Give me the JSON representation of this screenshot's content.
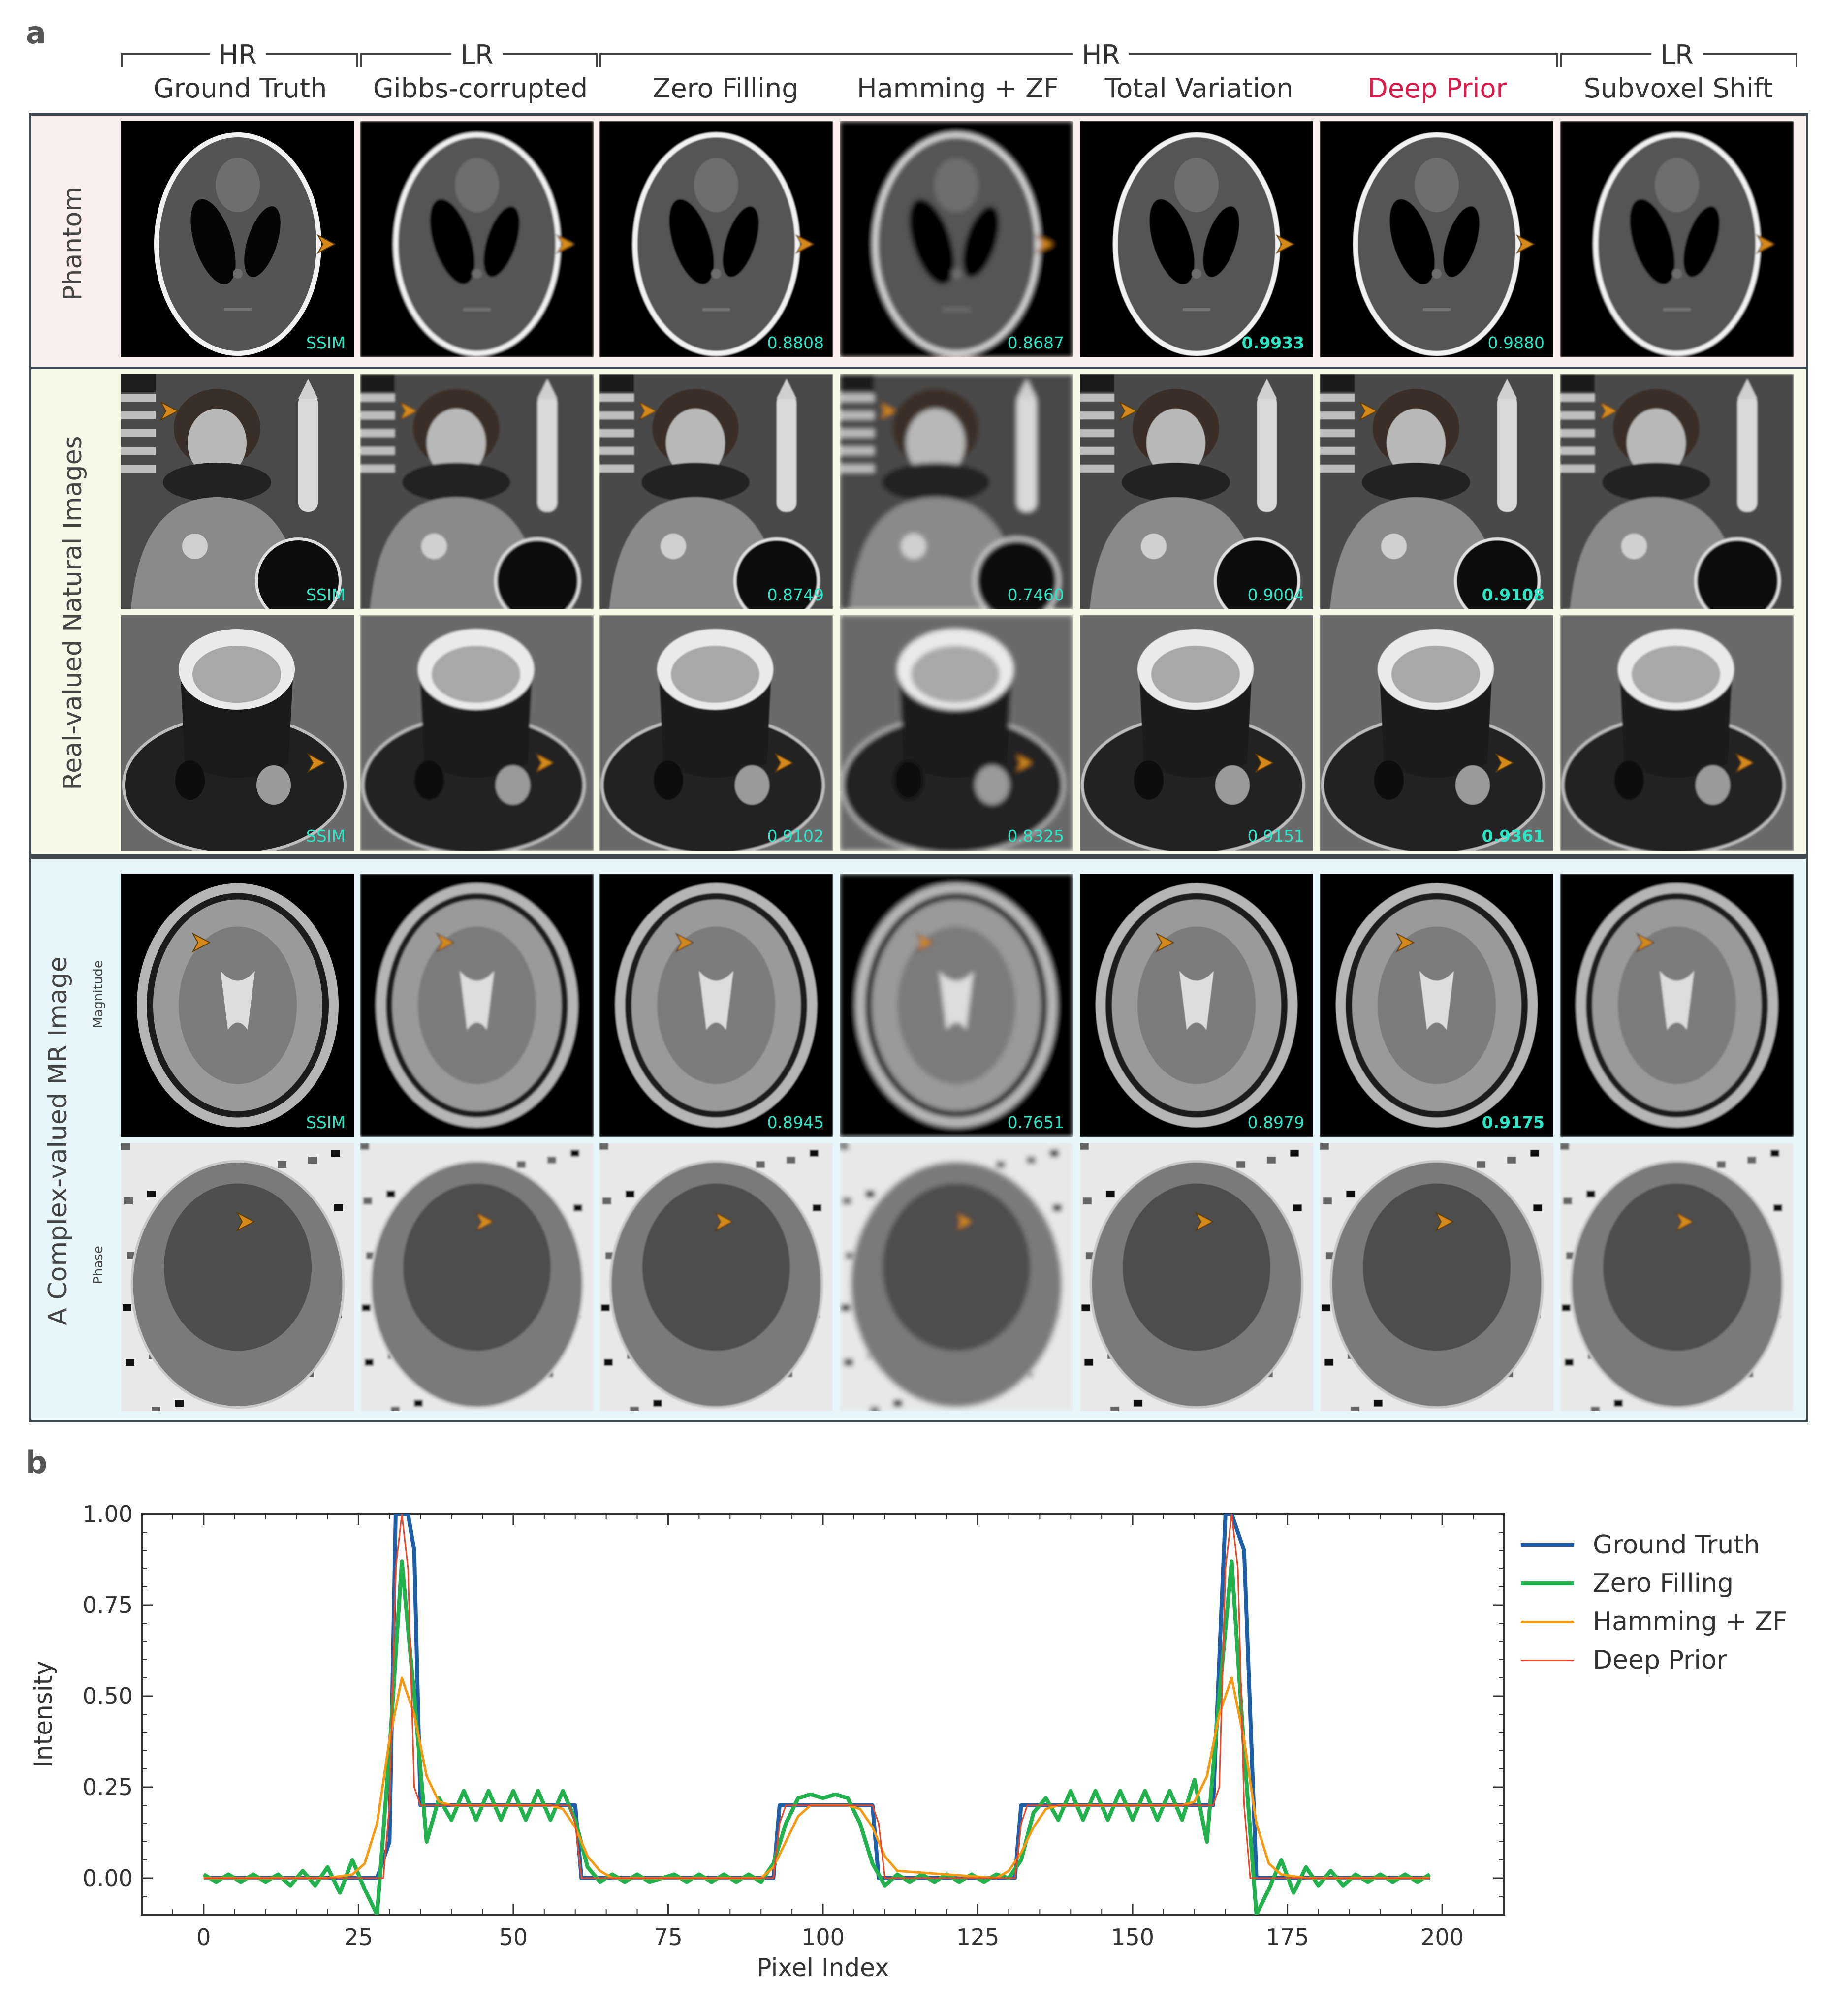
{
  "panel_a": {
    "letter": "a"
  },
  "panel_b": {
    "letter": "b"
  },
  "groups": [
    "HR",
    "LR",
    "HR",
    "LR"
  ],
  "columns": [
    {
      "label": "Ground Truth",
      "color": "#333333"
    },
    {
      "label": "Gibbs-corrupted",
      "color": "#333333"
    },
    {
      "label": "Zero Filling",
      "color": "#333333"
    },
    {
      "label": "Hamming + ZF",
      "color": "#333333"
    },
    {
      "label": "Total Variation",
      "color": "#333333"
    },
    {
      "label": "Deep Prior",
      "color": "#d81b4a"
    },
    {
      "label": "Subvoxel Shift",
      "color": "#333333"
    }
  ],
  "sections": {
    "phantom": {
      "title": "Phantom",
      "bg": "#fbeeee"
    },
    "natural": {
      "title": "Real-valued Natural Images",
      "bg": "#f5f8e6"
    },
    "mr": {
      "title": "A Complex-valued MR Image",
      "bg": "#e7f7f9",
      "sub_magnitude": "Magnitude",
      "sub_phase": "Phase"
    }
  },
  "ssim": {
    "phantom": [
      "SSIM",
      "",
      "0.8808",
      "0.8687",
      "0.9933",
      "0.9880",
      ""
    ],
    "astronaut": [
      "SSIM",
      "",
      "0.8749",
      "0.7460",
      "0.9004",
      "0.9108",
      ""
    ],
    "coffee": [
      "SSIM",
      "",
      "0.9102",
      "0.8325",
      "0.9151",
      "0.9361",
      ""
    ],
    "magnitude": [
      "SSIM",
      "",
      "0.8945",
      "0.7651",
      "0.8979",
      "0.9175",
      ""
    ]
  },
  "ssim_best": {
    "phantom": 4,
    "astronaut": 5,
    "coffee": 5,
    "magnitude": 5
  },
  "colors": {
    "ssim": "#2ee6c6",
    "arrow": "#d4891a",
    "highlight": "#d81b4a"
  },
  "chart_data": {
    "type": "line",
    "xlabel": "Pixel Index",
    "ylabel": "Intensity",
    "xlim": [
      -10,
      210
    ],
    "ylim": [
      -0.1,
      1.0
    ],
    "xticks": [
      0,
      25,
      50,
      75,
      100,
      125,
      150,
      175,
      200
    ],
    "yticks": [
      0.0,
      0.25,
      0.5,
      0.75,
      1.0
    ],
    "ytick_labels": [
      "0.00",
      "0.25",
      "0.50",
      "0.75",
      "1.00"
    ],
    "legend_position": "outside-right",
    "series": [
      {
        "name": "Ground Truth",
        "color": "#1f5fa8",
        "width": 8,
        "x": [
          0,
          28,
          30,
          31,
          33,
          34,
          35,
          58,
          60,
          61,
          92,
          93,
          94,
          107,
          108,
          109,
          131,
          132,
          133,
          162,
          163,
          165,
          166,
          168,
          170,
          198
        ],
        "y": [
          0,
          0,
          0.1,
          1.0,
          1.0,
          0.9,
          0.2,
          0.2,
          0.2,
          0,
          0,
          0.2,
          0.2,
          0.2,
          0.2,
          0,
          0,
          0.2,
          0.2,
          0.2,
          0.2,
          1.0,
          1.0,
          0.9,
          0,
          0
        ]
      },
      {
        "name": "Zero Filling",
        "color": "#22b14c",
        "width": 8,
        "x": [
          0,
          2,
          4,
          6,
          8,
          10,
          12,
          14,
          16,
          18,
          20,
          22,
          24,
          26,
          28,
          30,
          32,
          34,
          36,
          38,
          40,
          42,
          44,
          46,
          48,
          50,
          52,
          54,
          56,
          58,
          60,
          62,
          64,
          66,
          68,
          70,
          72,
          74,
          76,
          78,
          80,
          82,
          84,
          86,
          88,
          90,
          92,
          94,
          96,
          98,
          100,
          102,
          104,
          106,
          108,
          110,
          112,
          114,
          116,
          118,
          120,
          122,
          124,
          126,
          128,
          130,
          132,
          134,
          136,
          138,
          140,
          142,
          144,
          146,
          148,
          150,
          152,
          154,
          156,
          158,
          160,
          162,
          164,
          166,
          168,
          170,
          172,
          174,
          176,
          178,
          180,
          182,
          184,
          186,
          188,
          190,
          192,
          194,
          196,
          198
        ],
        "y": [
          0.01,
          -0.01,
          0.01,
          -0.01,
          0.01,
          -0.01,
          0.01,
          -0.02,
          0.02,
          -0.02,
          0.03,
          -0.04,
          0.05,
          -0.03,
          -0.1,
          0.35,
          0.87,
          0.5,
          0.1,
          0.22,
          0.16,
          0.24,
          0.16,
          0.24,
          0.16,
          0.24,
          0.16,
          0.24,
          0.16,
          0.24,
          0.16,
          0.03,
          -0.01,
          0.01,
          -0.01,
          0.01,
          -0.01,
          0.0,
          0.01,
          -0.01,
          0.01,
          -0.01,
          0.01,
          -0.01,
          0.01,
          -0.01,
          0.04,
          0.15,
          0.22,
          0.23,
          0.22,
          0.23,
          0.22,
          0.15,
          0.04,
          -0.02,
          0.01,
          -0.01,
          0.01,
          -0.01,
          0.01,
          -0.01,
          0.01,
          -0.01,
          0.01,
          0.0,
          0.05,
          0.18,
          0.22,
          0.16,
          0.24,
          0.16,
          0.24,
          0.16,
          0.24,
          0.16,
          0.24,
          0.16,
          0.24,
          0.16,
          0.27,
          0.1,
          0.5,
          0.87,
          0.35,
          -0.1,
          -0.03,
          0.05,
          -0.04,
          0.03,
          -0.02,
          0.02,
          -0.02,
          0.01,
          -0.01,
          0.01,
          -0.01,
          0.01,
          -0.01,
          0.01
        ]
      },
      {
        "name": "Hamming + ZF",
        "color": "#f59a14",
        "width": 5,
        "x": [
          0,
          20,
          24,
          26,
          28,
          30,
          32,
          34,
          36,
          38,
          40,
          56,
          58,
          60,
          62,
          64,
          66,
          90,
          92,
          94,
          96,
          98,
          100,
          104,
          106,
          108,
          110,
          112,
          128,
          130,
          132,
          134,
          136,
          138,
          158,
          160,
          162,
          164,
          166,
          168,
          170,
          172,
          174,
          178,
          198
        ],
        "y": [
          0,
          0,
          0.01,
          0.04,
          0.15,
          0.38,
          0.55,
          0.45,
          0.28,
          0.21,
          0.2,
          0.2,
          0.19,
          0.14,
          0.06,
          0.02,
          0.0,
          0.0,
          0.03,
          0.1,
          0.17,
          0.2,
          0.2,
          0.2,
          0.19,
          0.14,
          0.06,
          0.02,
          0.0,
          0.02,
          0.07,
          0.14,
          0.19,
          0.2,
          0.2,
          0.21,
          0.28,
          0.45,
          0.55,
          0.38,
          0.15,
          0.04,
          0.01,
          0.0,
          0.0
        ]
      },
      {
        "name": "Deep Prior",
        "color": "#e8462a",
        "width": 3,
        "x": [
          0,
          29,
          30,
          31,
          32,
          33,
          34,
          35,
          59,
          60,
          61,
          92,
          93,
          94,
          108,
          109,
          110,
          131,
          132,
          133,
          163,
          164,
          165,
          166,
          167,
          168,
          169,
          198
        ],
        "y": [
          0,
          0,
          0.2,
          0.85,
          1.0,
          0.85,
          0.25,
          0.2,
          0.2,
          0.15,
          0,
          0,
          0.15,
          0.2,
          0.2,
          0.15,
          0,
          0,
          0.15,
          0.2,
          0.2,
          0.25,
          0.85,
          1.0,
          0.85,
          0.2,
          0,
          0
        ]
      }
    ]
  }
}
